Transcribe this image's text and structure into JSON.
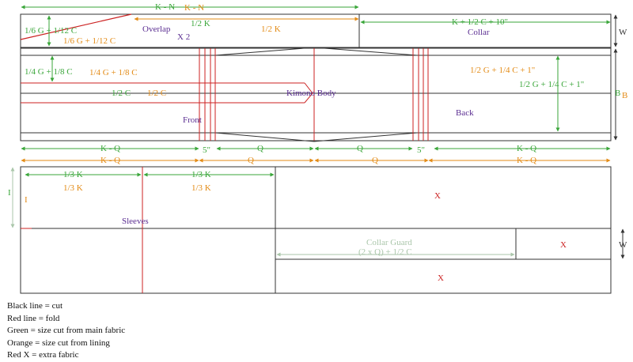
{
  "colors": {
    "cut": "#333333",
    "fold": "#cc2222",
    "main": "#3aa63a",
    "lining": "#e38b16",
    "label": "#5a2d91",
    "faint": "#aac6aa"
  },
  "labels": {
    "k_n_green": "K - N",
    "k_n_orange": "K - N",
    "sixth_g_green": "1/6 G + 1/12 C",
    "sixth_g_orange": "1/6 G + 1/12 C",
    "overlap": "Overlap",
    "x2": "X 2",
    "half_k_green": "1/2 K",
    "half_k_orange": "1/2 K",
    "collar_dim": "K + 1/2 C + 10\"",
    "collar": "Collar",
    "w_top": "W",
    "quarter_g_green": "1/4 G + 1/8 C",
    "quarter_g_orange": "1/4 G + 1/8 C",
    "half_g_orange": "1/2 G + 1/4 C + 1\"",
    "half_g_green": "1/2 G + 1/4 C + 1\"",
    "b_green": "B",
    "b_orange": "B",
    "half_c_green": "1/2 C",
    "half_c_orange": "1/2 C",
    "kimono_body": "Kimono Body",
    "front": "Front",
    "back": "Back",
    "kq_left_green": "K - Q",
    "kq_left_orange": "K - Q",
    "five_in_left": "5\"",
    "q_green_1": "Q",
    "q_orange_1": "Q",
    "q_green_2": "Q",
    "q_orange_2": "Q",
    "five_in_right": "5\"",
    "kq_right_green": "K - Q",
    "kq_right_orange": "K - Q",
    "third_k_green_1": "1/3 K",
    "third_k_orange_1": "1/3 K",
    "third_k_green_2": "1/3 K",
    "third_k_orange_2": "1/3 K",
    "i_green": "I",
    "i_orange": "I",
    "sleeves": "Sleeves",
    "x_top": "X",
    "collar_guard": "Collar Guard",
    "collar_guard_dim": "(2 x Q) + 1/2 C",
    "x_right": "X",
    "w_bottom": "W",
    "x_bottom": "X"
  },
  "legend": [
    "Black line = cut",
    "Red line = fold",
    "Green = size cut from main fabric",
    "Orange = size cut from lining",
    "Red X = extra fabric"
  ]
}
